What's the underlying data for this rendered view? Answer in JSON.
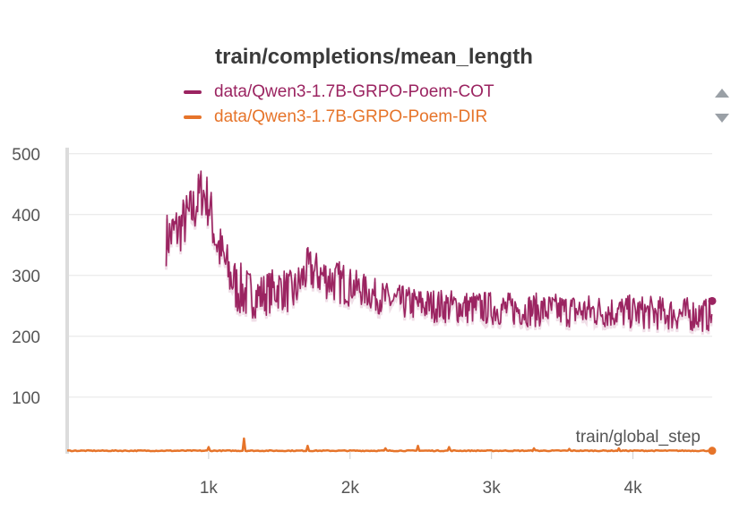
{
  "chart_data": {
    "type": "line",
    "title": "train/completions/mean_length",
    "xlabel": "train/global_step",
    "ylabel": "",
    "xlim": [
      0,
      4560
    ],
    "ylim": [
      10,
      510
    ],
    "x_ticks": [
      1000,
      2000,
      3000,
      4000
    ],
    "x_tick_labels": [
      "1k",
      "2k",
      "3k",
      "4k"
    ],
    "y_ticks": [
      100,
      200,
      300,
      400,
      500
    ],
    "y_tick_labels": [
      "100",
      "200",
      "300",
      "400",
      "500"
    ],
    "grid": true,
    "legend_position": "top",
    "series": [
      {
        "name": "data/Qwen3-1.7B-GRPO-Poem-COT",
        "color": "#9b2461",
        "x_start": 700,
        "x_end": 4560,
        "trend": [
          [
            700,
            360
          ],
          [
            800,
            380
          ],
          [
            900,
            410
          ],
          [
            950,
            440
          ],
          [
            1000,
            420
          ],
          [
            1050,
            360
          ],
          [
            1100,
            330
          ],
          [
            1150,
            300
          ],
          [
            1200,
            280
          ],
          [
            1300,
            265
          ],
          [
            1400,
            270
          ],
          [
            1500,
            280
          ],
          [
            1600,
            270
          ],
          [
            1700,
            310
          ],
          [
            1800,
            300
          ],
          [
            1900,
            290
          ],
          [
            2000,
            285
          ],
          [
            2100,
            275
          ],
          [
            2200,
            265
          ],
          [
            2300,
            258
          ],
          [
            2500,
            252
          ],
          [
            2800,
            248
          ],
          [
            3200,
            244
          ],
          [
            3600,
            242
          ],
          [
            4000,
            240
          ],
          [
            4300,
            237
          ],
          [
            4560,
            235
          ]
        ],
        "noise_amplitude": 28,
        "last_value": 258
      },
      {
        "name": "data/Qwen3-1.7B-GRPO-Poem-DIR",
        "color": "#e6742a",
        "x_start": 0,
        "x_end": 4560,
        "baseline": 12,
        "spikes": [
          [
            1000,
            18
          ],
          [
            1250,
            32
          ],
          [
            1700,
            20
          ],
          [
            2250,
            16
          ],
          [
            2480,
            20
          ],
          [
            2700,
            18
          ],
          [
            3300,
            16
          ],
          [
            3550,
            15
          ],
          [
            3900,
            16
          ]
        ],
        "last_value": 12
      }
    ]
  }
}
